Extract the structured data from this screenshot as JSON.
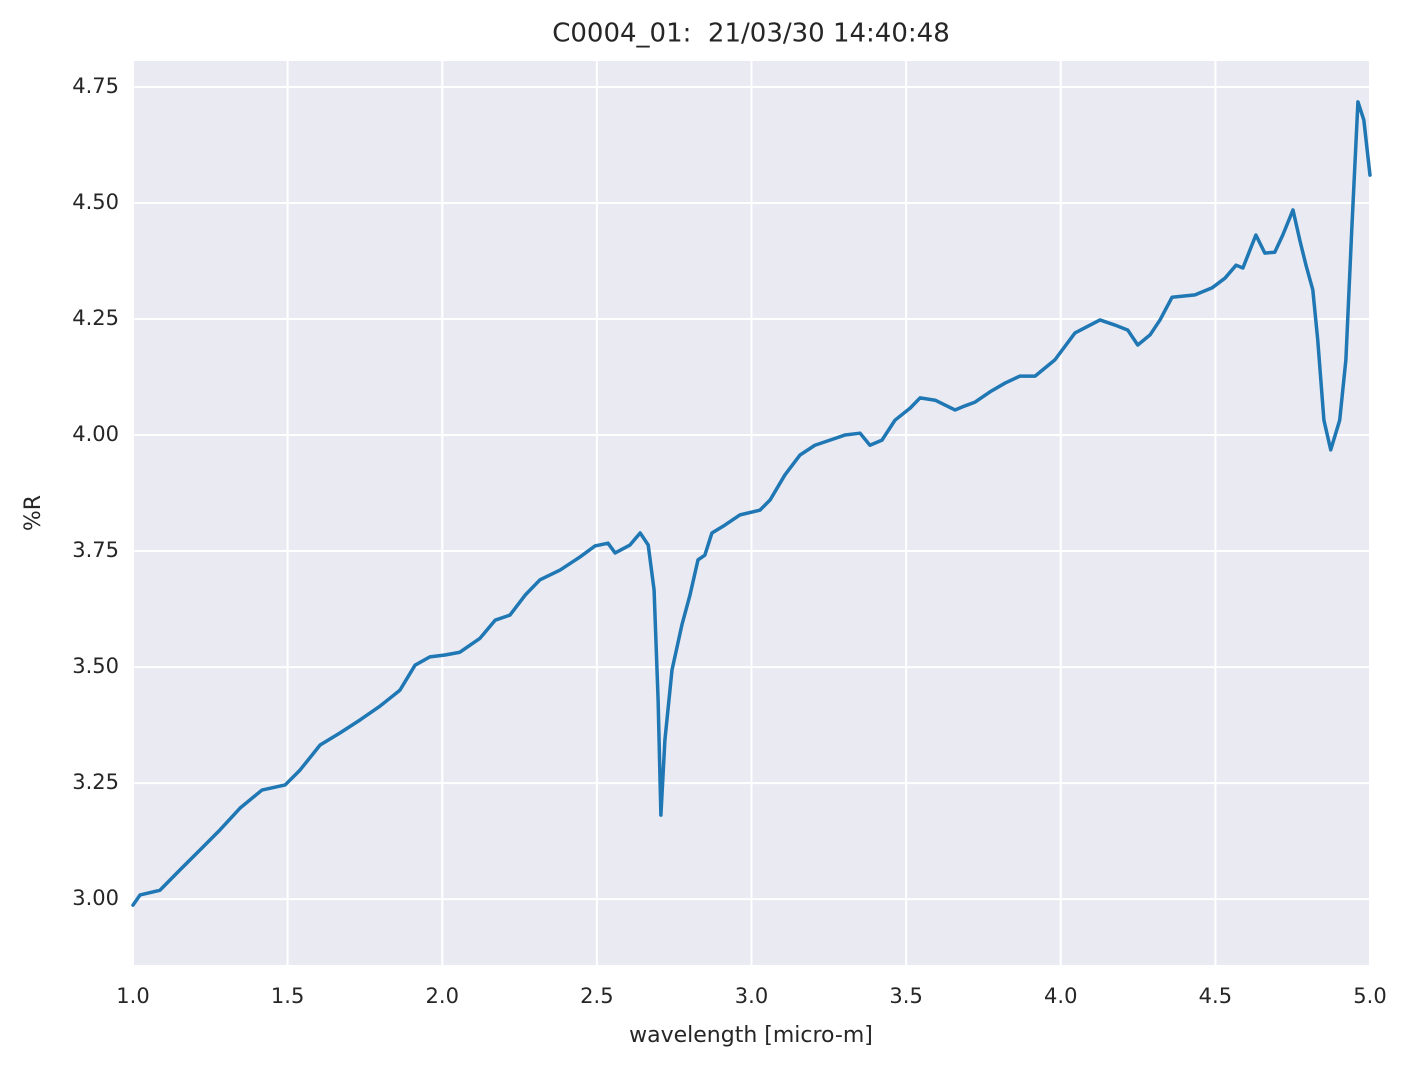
{
  "chart_data": {
    "type": "line",
    "title": "C0004_01:  21/03/30 14:40:48",
    "x_label": "wavelength [micro-m]",
    "y_label": "%R",
    "color": "#1f77b4",
    "background": "#eaeaf2",
    "grid": true,
    "xlim": [
      1.0,
      5.0
    ],
    "ylim": [
      2.858,
      4.806
    ],
    "xticks": [
      {
        "value": 1,
        "label": "1.0"
      },
      1.5,
      {
        "value": 2,
        "label": "2.0"
      },
      2.5,
      {
        "value": 3,
        "label": "3.0"
      },
      3.5,
      {
        "value": 4,
        "label": "4.0"
      },
      4.5,
      {
        "value": 5,
        "label": "5.0"
      }
    ],
    "yticks": [
      {
        "value": 3,
        "label": "3.00"
      },
      3.25,
      {
        "value": 3.5,
        "label": "3.50"
      },
      3.75,
      {
        "value": 4,
        "label": "4.00"
      },
      4.25,
      {
        "value": 4.5,
        "label": "4.50"
      },
      4.75
    ],
    "x": [
      1.0,
      1.023,
      1.087,
      1.152,
      1.217,
      1.281,
      1.346,
      1.417,
      1.492,
      1.54,
      1.605,
      1.669,
      1.734,
      1.799,
      1.863,
      1.912,
      1.96,
      2.009,
      2.057,
      2.122,
      2.171,
      2.219,
      2.268,
      2.316,
      2.381,
      2.445,
      2.494,
      2.536,
      2.559,
      2.607,
      2.64,
      2.666,
      2.685,
      2.698,
      2.707,
      2.72,
      2.743,
      2.775,
      2.801,
      2.827,
      2.849,
      2.872,
      2.914,
      2.963,
      3.027,
      3.06,
      3.108,
      3.157,
      3.205,
      3.254,
      3.302,
      3.351,
      3.383,
      3.422,
      3.464,
      3.513,
      3.545,
      3.594,
      3.658,
      3.691,
      3.723,
      3.771,
      3.82,
      3.868,
      3.917,
      3.981,
      4.046,
      4.127,
      4.175,
      4.217,
      4.249,
      4.289,
      4.321,
      4.36,
      4.434,
      4.489,
      4.531,
      4.567,
      4.589,
      4.612,
      4.631,
      4.66,
      4.692,
      4.718,
      4.751,
      4.773,
      4.793,
      4.815,
      4.831,
      4.851,
      4.873,
      4.902,
      4.922,
      4.941,
      4.961,
      4.98,
      5.0
    ],
    "values": [
      2.987,
      3.009,
      3.019,
      3.063,
      3.106,
      3.149,
      3.196,
      3.235,
      3.246,
      3.278,
      3.332,
      3.358,
      3.386,
      3.416,
      3.45,
      3.504,
      3.522,
      3.526,
      3.532,
      3.562,
      3.601,
      3.612,
      3.655,
      3.688,
      3.709,
      3.737,
      3.761,
      3.767,
      3.746,
      3.763,
      3.789,
      3.763,
      3.666,
      3.429,
      3.181,
      3.343,
      3.494,
      3.591,
      3.655,
      3.731,
      3.741,
      3.789,
      3.806,
      3.828,
      3.838,
      3.86,
      3.914,
      3.957,
      3.978,
      3.989,
      4.0,
      4.004,
      3.978,
      3.989,
      4.032,
      4.058,
      4.08,
      4.075,
      4.054,
      4.063,
      4.071,
      4.093,
      4.112,
      4.127,
      4.127,
      4.162,
      4.22,
      4.248,
      4.237,
      4.226,
      4.194,
      4.216,
      4.248,
      4.297,
      4.302,
      4.317,
      4.338,
      4.366,
      4.36,
      4.399,
      4.431,
      4.392,
      4.394,
      4.431,
      4.485,
      4.42,
      4.366,
      4.313,
      4.205,
      4.032,
      3.968,
      4.032,
      4.162,
      4.442,
      4.718,
      4.679,
      4.56
    ]
  }
}
